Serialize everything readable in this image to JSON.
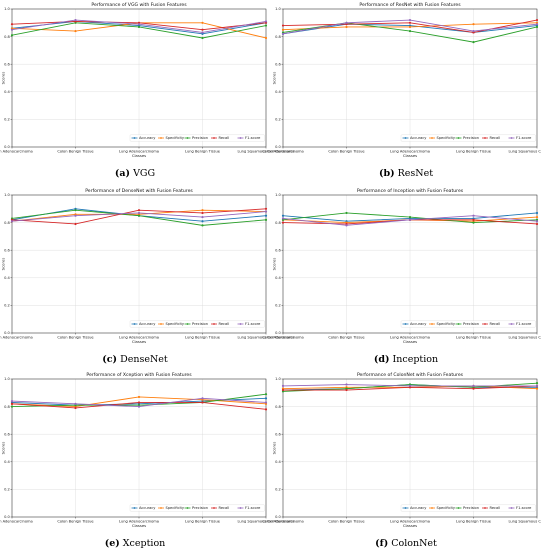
{
  "figure": {
    "panels": [
      {
        "caption_tag": "(a)",
        "caption_text": "VGG"
      },
      {
        "caption_tag": "(b)",
        "caption_text": "ResNet"
      },
      {
        "caption_tag": "(c)",
        "caption_text": "DenseNet"
      },
      {
        "caption_tag": "(d)",
        "caption_text": "Inception"
      },
      {
        "caption_tag": "(e)",
        "caption_text": "Xception"
      },
      {
        "caption_tag": "(f)",
        "caption_text": "ColonNet"
      }
    ]
  },
  "colors": {
    "Accuracy": "#1f77b4",
    "Specificity": "#ff7f0e",
    "Precision": "#2ca02c",
    "Recall": "#d62728",
    "F1-score": "#9467bd"
  },
  "chart_data": [
    {
      "type": "line",
      "title": "Performance of VGG with Fusion Features",
      "xlabel": "Classes",
      "ylabel": "Scores",
      "ylim": [
        0.0,
        1.0
      ],
      "yticks": [
        "0.0",
        "0.2",
        "0.4",
        "0.6",
        "0.8",
        "1.0"
      ],
      "grid": true,
      "legend": "lower-right",
      "categories": [
        "Colon Adenocarcinoma",
        "Colon Benign Tissue",
        "Lung Adenocarcinoma",
        "Lung Benign Tissue",
        "Lung Squamous Cell Carcinoma"
      ],
      "series": [
        {
          "name": "Accuracy",
          "values": [
            0.86,
            0.91,
            0.88,
            0.82,
            0.9
          ]
        },
        {
          "name": "Specificity",
          "values": [
            0.86,
            0.84,
            0.9,
            0.9,
            0.79
          ]
        },
        {
          "name": "Precision",
          "values": [
            0.81,
            0.9,
            0.87,
            0.79,
            0.88
          ]
        },
        {
          "name": "Recall",
          "values": [
            0.89,
            0.91,
            0.9,
            0.85,
            0.9
          ]
        },
        {
          "name": "F1-score",
          "values": [
            0.85,
            0.92,
            0.89,
            0.83,
            0.91
          ]
        }
      ]
    },
    {
      "type": "line",
      "title": "Performance of ResNet with Fusion Features",
      "xlabel": "Classes",
      "ylabel": "Scores",
      "ylim": [
        0.0,
        1.0
      ],
      "yticks": [
        "0.0",
        "0.2",
        "0.4",
        "0.6",
        "0.8",
        "1.0"
      ],
      "grid": true,
      "legend": "lower-right",
      "categories": [
        "Colon Adenocarcinoma",
        "Colon Benign Tissue",
        "Lung Adenocarcinoma",
        "Lung Benign Tissue",
        "Lung Squamous Cell Carcinoma"
      ],
      "series": [
        {
          "name": "Accuracy",
          "values": [
            0.82,
            0.89,
            0.88,
            0.83,
            0.88
          ]
        },
        {
          "name": "Specificity",
          "values": [
            0.85,
            0.87,
            0.87,
            0.89,
            0.9
          ]
        },
        {
          "name": "Precision",
          "values": [
            0.83,
            0.9,
            0.84,
            0.76,
            0.87
          ]
        },
        {
          "name": "Recall",
          "values": [
            0.88,
            0.89,
            0.9,
            0.83,
            0.92
          ]
        },
        {
          "name": "F1-score",
          "values": [
            0.82,
            0.9,
            0.92,
            0.84,
            0.89
          ]
        }
      ]
    },
    {
      "type": "line",
      "title": "Performance of DenseNet with Fusion Features",
      "xlabel": "Classes",
      "ylabel": "Scores",
      "ylim": [
        0.0,
        1.0
      ],
      "yticks": [
        "0.0",
        "0.2",
        "0.4",
        "0.6",
        "0.8",
        "1.0"
      ],
      "grid": true,
      "legend": "lower-right",
      "categories": [
        "Colon Adenocarcinoma",
        "Colon Benign Tissue",
        "Lung Adenocarcinoma",
        "Lung Benign Tissue",
        "Lung Squamous Cell Carcinoma"
      ],
      "series": [
        {
          "name": "Accuracy",
          "values": [
            0.82,
            0.9,
            0.85,
            0.81,
            0.85
          ]
        },
        {
          "name": "Specificity",
          "values": [
            0.81,
            0.86,
            0.86,
            0.89,
            0.88
          ]
        },
        {
          "name": "Precision",
          "values": [
            0.83,
            0.89,
            0.85,
            0.78,
            0.82
          ]
        },
        {
          "name": "Recall",
          "values": [
            0.82,
            0.79,
            0.89,
            0.87,
            0.9
          ]
        },
        {
          "name": "F1-score",
          "values": [
            0.81,
            0.85,
            0.87,
            0.84,
            0.88
          ]
        }
      ]
    },
    {
      "type": "line",
      "title": "Performance of Inception with Fusion Features",
      "xlabel": "Classes",
      "ylabel": "Scores",
      "ylim": [
        0.0,
        1.0
      ],
      "yticks": [
        "0.0",
        "0.2",
        "0.4",
        "0.6",
        "0.8",
        "1.0"
      ],
      "grid": true,
      "legend": "lower-right",
      "categories": [
        "Colon Adenocarcinoma",
        "Colon Benign Tissue",
        "Lung Adenocarcinoma",
        "Lung Benign Tissue",
        "Lung Squamous Cell Carcinoma"
      ],
      "series": [
        {
          "name": "Accuracy",
          "values": [
            0.85,
            0.81,
            0.83,
            0.83,
            0.87
          ]
        },
        {
          "name": "Specificity",
          "values": [
            0.82,
            0.8,
            0.82,
            0.81,
            0.84
          ]
        },
        {
          "name": "Precision",
          "values": [
            0.82,
            0.87,
            0.84,
            0.8,
            0.82
          ]
        },
        {
          "name": "Recall",
          "values": [
            0.8,
            0.79,
            0.82,
            0.82,
            0.79
          ]
        },
        {
          "name": "F1-score",
          "values": [
            0.83,
            0.78,
            0.82,
            0.85,
            0.81
          ]
        }
      ]
    },
    {
      "type": "line",
      "title": "Performance of Xception with Fusion Features",
      "xlabel": "Classes",
      "ylabel": "Scores",
      "ylim": [
        0.0,
        1.0
      ],
      "yticks": [
        "0.0",
        "0.2",
        "0.4",
        "0.6",
        "0.8",
        "1.0"
      ],
      "grid": true,
      "legend": "lower-right",
      "categories": [
        "Colon Adenocarcinoma",
        "Colon Benign Tissue",
        "Lung Adenocarcinoma",
        "Lung Benign Tissue",
        "Lung Squamous Cell Carcinoma"
      ],
      "series": [
        {
          "name": "Accuracy",
          "values": [
            0.83,
            0.81,
            0.82,
            0.84,
            0.86
          ]
        },
        {
          "name": "Specificity",
          "values": [
            0.82,
            0.8,
            0.87,
            0.85,
            0.82
          ]
        },
        {
          "name": "Precision",
          "values": [
            0.8,
            0.81,
            0.81,
            0.83,
            0.89
          ]
        },
        {
          "name": "Recall",
          "values": [
            0.82,
            0.79,
            0.83,
            0.83,
            0.78
          ]
        },
        {
          "name": "F1-score",
          "values": [
            0.84,
            0.82,
            0.8,
            0.86,
            0.83
          ]
        }
      ]
    },
    {
      "type": "line",
      "title": "Performance of ColonNet with Fusion Features",
      "xlabel": "Classes",
      "ylabel": "Scores",
      "ylim": [
        0.0,
        1.0
      ],
      "yticks": [
        "0.0",
        "0.2",
        "0.4",
        "0.6",
        "0.8",
        "1.0"
      ],
      "grid": true,
      "legend": "lower-right",
      "categories": [
        "Colon Adenocarcinoma",
        "Colon Benign Tissue",
        "Lung Adenocarcinoma",
        "Lung Benign Tissue",
        "Lung Squamous Cell Carcinoma"
      ],
      "series": [
        {
          "name": "Accuracy",
          "values": [
            0.92,
            0.93,
            0.96,
            0.94,
            0.94
          ]
        },
        {
          "name": "Specificity",
          "values": [
            0.93,
            0.94,
            0.94,
            0.95,
            0.93
          ]
        },
        {
          "name": "Precision",
          "values": [
            0.91,
            0.93,
            0.96,
            0.94,
            0.97
          ]
        },
        {
          "name": "Recall",
          "values": [
            0.92,
            0.92,
            0.94,
            0.93,
            0.95
          ]
        },
        {
          "name": "F1-score",
          "values": [
            0.95,
            0.96,
            0.95,
            0.95,
            0.95
          ]
        }
      ]
    }
  ]
}
